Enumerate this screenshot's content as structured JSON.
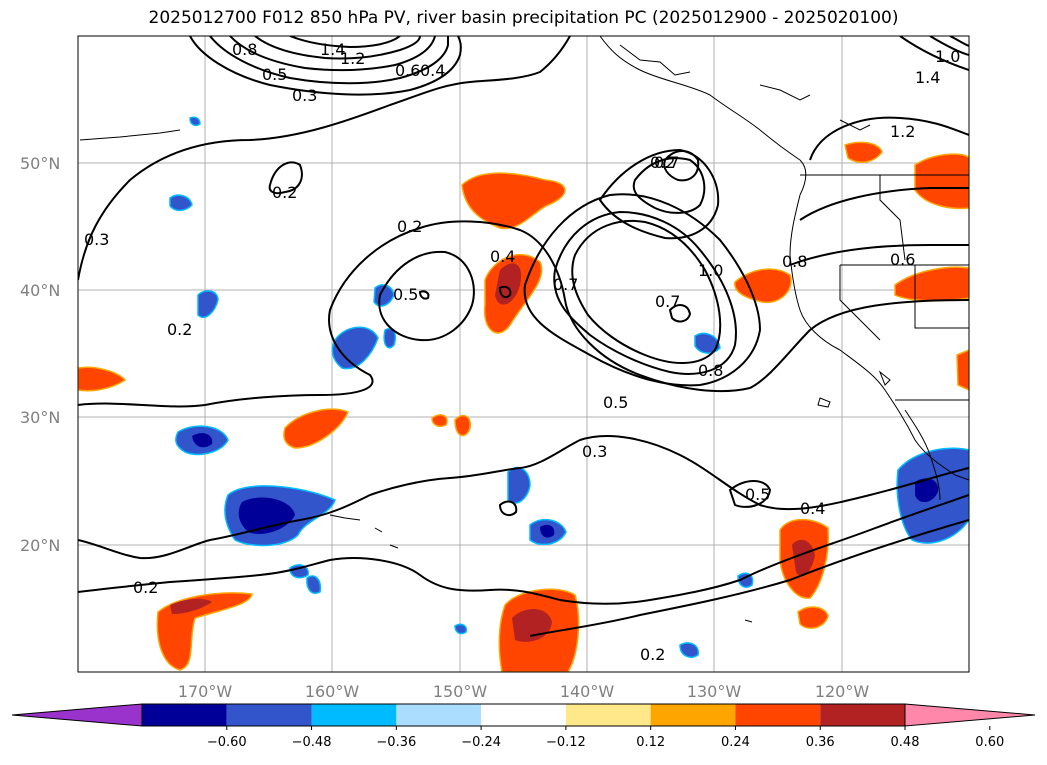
{
  "title": "2025012700 F012 850 hPa PV, river basin precipitation PC (2025012900 - 2025020100)",
  "axes": {
    "lat_labels": [
      "50°N",
      "40°N",
      "30°N",
      "20°N"
    ],
    "lon_labels": [
      "170°W",
      "160°W",
      "150°W",
      "140°W",
      "130°W",
      "120°W"
    ]
  },
  "contour_labels": [
    "0.8",
    "1.4",
    "1.2",
    "0.5",
    "0.6",
    "0.4",
    "0.3",
    "0.2",
    "0.3",
    "0.2",
    "0.2",
    "0.4",
    "0.5",
    "0.7",
    "0.7",
    "1.0",
    "0.8",
    "0.6",
    "0.2",
    "0.7",
    "0.8",
    "0.5",
    "0.3",
    "0.5",
    "0.4",
    "0.2",
    "0.2",
    "1.2",
    "1.4",
    "1.0"
  ],
  "colorbar": {
    "ticks": [
      "−0.60",
      "−0.48",
      "−0.36",
      "−0.24",
      "−0.12",
      "0.12",
      "0.24",
      "0.36",
      "0.48",
      "0.60"
    ],
    "colors": [
      "#9933cc",
      "#000099",
      "#3355cc",
      "#00bbff",
      "#aaddff",
      "#ffffff",
      "#ffe88a",
      "#ffa500",
      "#ff4500",
      "#b22222",
      "#ff88aa"
    ]
  }
}
